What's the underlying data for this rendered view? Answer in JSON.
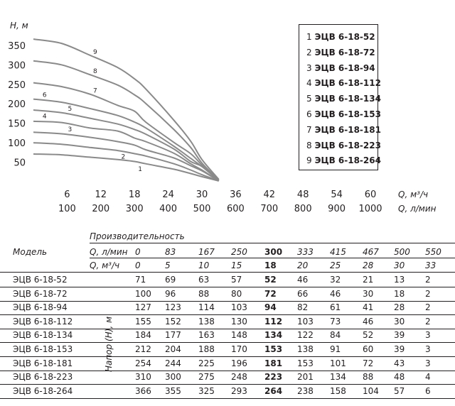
{
  "chart_data": {
    "type": "line",
    "ylabel": "H, м",
    "x_label_m3": "Q, м³/ч",
    "x_label_l": "Q, л/мин",
    "y_ticks": [
      "350",
      "300",
      "250",
      "200",
      "150",
      "100",
      "50"
    ],
    "x_ticks_m3": [
      "6",
      "12",
      "18",
      "24",
      "30",
      "36",
      "42",
      "48",
      "54",
      "60"
    ],
    "x_ticks_l": [
      "100",
      "200",
      "300",
      "400",
      "500",
      "600",
      "700",
      "800",
      "900",
      "1000"
    ],
    "ylim": [
      0,
      380
    ],
    "xlim": [
      0,
      60
    ],
    "series": [
      {
        "name": "1",
        "x": [
          0,
          5,
          10,
          15,
          18,
          20,
          25,
          28,
          30,
          33
        ],
        "values": [
          71,
          69,
          63,
          57,
          52,
          46,
          32,
          21,
          13,
          2
        ]
      },
      {
        "name": "2",
        "x": [
          0,
          5,
          10,
          15,
          18,
          20,
          25,
          28,
          30,
          33
        ],
        "values": [
          100,
          96,
          88,
          80,
          72,
          66,
          46,
          30,
          18,
          2
        ]
      },
      {
        "name": "3",
        "x": [
          0,
          5,
          10,
          15,
          18,
          20,
          25,
          28,
          30,
          33
        ],
        "values": [
          127,
          123,
          114,
          103,
          94,
          82,
          61,
          41,
          28,
          2
        ]
      },
      {
        "name": "4",
        "x": [
          0,
          5,
          10,
          15,
          18,
          20,
          25,
          28,
          30,
          33
        ],
        "values": [
          155,
          152,
          138,
          130,
          112,
          103,
          73,
          46,
          30,
          2
        ]
      },
      {
        "name": "5",
        "x": [
          0,
          5,
          10,
          15,
          18,
          20,
          25,
          28,
          30,
          33
        ],
        "values": [
          184,
          177,
          163,
          148,
          134,
          122,
          84,
          52,
          39,
          3
        ]
      },
      {
        "name": "6",
        "x": [
          0,
          5,
          10,
          15,
          18,
          20,
          25,
          28,
          30,
          33
        ],
        "values": [
          212,
          204,
          188,
          170,
          153,
          138,
          91,
          60,
          39,
          3
        ]
      },
      {
        "name": "7",
        "x": [
          0,
          5,
          10,
          15,
          18,
          20,
          25,
          28,
          30,
          33
        ],
        "values": [
          254,
          244,
          225,
          196,
          181,
          153,
          101,
          72,
          43,
          3
        ]
      },
      {
        "name": "8",
        "x": [
          0,
          5,
          10,
          15,
          18,
          20,
          25,
          28,
          30,
          33
        ],
        "values": [
          310,
          300,
          275,
          248,
          223,
          201,
          134,
          88,
          48,
          4
        ]
      },
      {
        "name": "9",
        "x": [
          0,
          5,
          10,
          15,
          18,
          20,
          25,
          28,
          30,
          33
        ],
        "values": [
          366,
          355,
          325,
          293,
          264,
          238,
          158,
          104,
          57,
          6
        ]
      }
    ]
  },
  "legend": [
    {
      "num": "1",
      "name": "ЭЦВ 6-18-52"
    },
    {
      "num": "2",
      "name": "ЭЦВ 6-18-72"
    },
    {
      "num": "3",
      "name": "ЭЦВ 6-18-94"
    },
    {
      "num": "4",
      "name": "ЭЦВ 6-18-112"
    },
    {
      "num": "5",
      "name": "ЭЦВ 6-18-134"
    },
    {
      "num": "6",
      "name": "ЭЦВ 6-18-153"
    },
    {
      "num": "7",
      "name": "ЭЦВ 6-18-181"
    },
    {
      "num": "8",
      "name": "ЭЦВ 6-18-223"
    },
    {
      "num": "9",
      "name": "ЭЦВ 6-18-264"
    }
  ],
  "table": {
    "perf_header": "Производительность",
    "model_header": "Модель",
    "q_l_label": "Q, л/мин",
    "q_m3_label": "Q, м³/ч",
    "head_label": "Напор (H), м",
    "q_l": [
      "0",
      "83",
      "167",
      "250",
      "300",
      "333",
      "415",
      "467",
      "500",
      "550"
    ],
    "q_m3": [
      "0",
      "5",
      "10",
      "15",
      "18",
      "20",
      "25",
      "28",
      "30",
      "33"
    ],
    "highlight_col": 4,
    "rows": [
      {
        "model": "ЭЦВ 6-18-52",
        "values": [
          "71",
          "69",
          "63",
          "57",
          "52",
          "46",
          "32",
          "21",
          "13",
          "2"
        ]
      },
      {
        "model": "ЭЦВ 6-18-72",
        "values": [
          "100",
          "96",
          "88",
          "80",
          "72",
          "66",
          "46",
          "30",
          "18",
          "2"
        ]
      },
      {
        "model": "ЭЦВ 6-18-94",
        "values": [
          "127",
          "123",
          "114",
          "103",
          "94",
          "82",
          "61",
          "41",
          "28",
          "2"
        ]
      },
      {
        "model": "ЭЦВ 6-18-112",
        "values": [
          "155",
          "152",
          "138",
          "130",
          "112",
          "103",
          "73",
          "46",
          "30",
          "2"
        ]
      },
      {
        "model": "ЭЦВ 6-18-134",
        "values": [
          "184",
          "177",
          "163",
          "148",
          "134",
          "122",
          "84",
          "52",
          "39",
          "3"
        ]
      },
      {
        "model": "ЭЦВ 6-18-153",
        "values": [
          "212",
          "204",
          "188",
          "170",
          "153",
          "138",
          "91",
          "60",
          "39",
          "3"
        ]
      },
      {
        "model": "ЭЦВ 6-18-181",
        "values": [
          "254",
          "244",
          "225",
          "196",
          "181",
          "153",
          "101",
          "72",
          "43",
          "3"
        ]
      },
      {
        "model": "ЭЦВ 6-18-223",
        "values": [
          "310",
          "300",
          "275",
          "248",
          "223",
          "201",
          "134",
          "88",
          "48",
          "4"
        ]
      },
      {
        "model": "ЭЦВ 6-18-264",
        "values": [
          "366",
          "355",
          "325",
          "293",
          "264",
          "238",
          "158",
          "104",
          "57",
          "6"
        ]
      }
    ]
  }
}
